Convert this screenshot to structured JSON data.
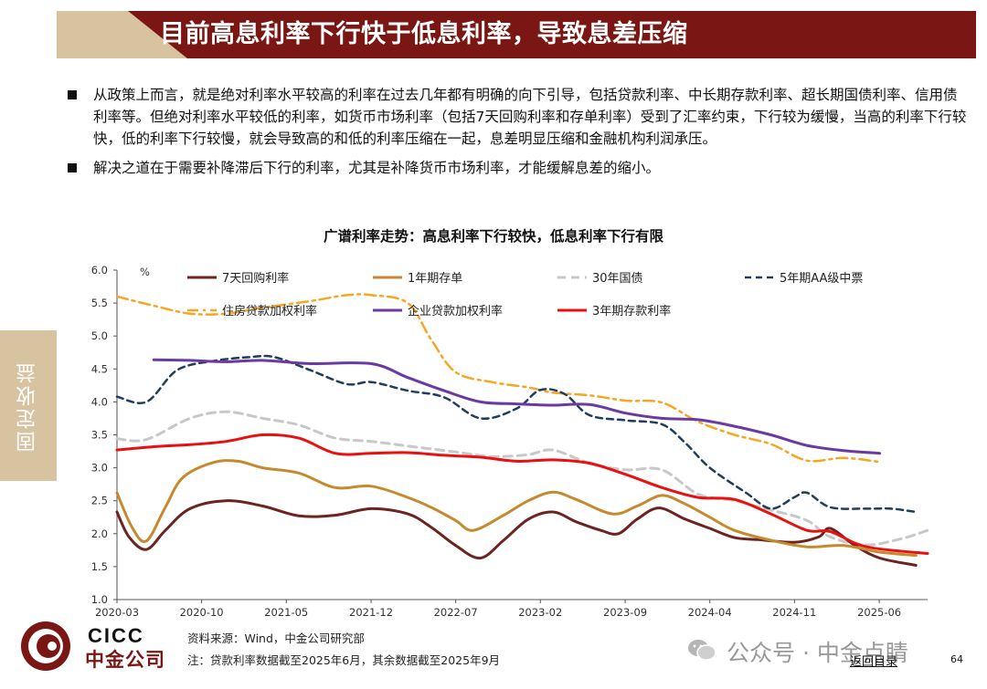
{
  "header": {
    "title": "目前高息利率下行快于低息利率，导致息差压缩"
  },
  "bullets": [
    "从政策上而言，就是绝对利率水平较高的利率在过去几年都有明确的向下引导，包括贷款利率、中长期存款利率、超长期国债利率、信用债利率等。但绝对利率水平较低的利率，如货币市场利率（包括7天回购利率和存单利率）受到了汇率约束，下行较为缓慢，当高的利率下行较快，低的利率下行较慢，就会导致高的和低的利率压缩在一起，息差明显压缩和金融机构利润承压。",
    "解决之道在于需要补降滞后下行的利率，尤其是补降货币市场利率，才能缓解息差的缩小。"
  ],
  "side_tab": "固定收益",
  "chart_data": {
    "type": "line",
    "title": "广谱利率走势：高息利率下行较快，低息利率下行有限",
    "ylabel": "%",
    "ylim": [
      1.0,
      6.0
    ],
    "yticks": [
      "1.0",
      "1.5",
      "2.0",
      "2.5",
      "3.0",
      "3.5",
      "4.0",
      "4.5",
      "5.0",
      "5.5",
      "6.0"
    ],
    "xlim": [
      2020.167,
      2025.75
    ],
    "xticks": [
      {
        "label": "2020-03",
        "t": 2020.167
      },
      {
        "label": "2020-10",
        "t": 2020.75
      },
      {
        "label": "2021-05",
        "t": 2021.333
      },
      {
        "label": "2021-12",
        "t": 2021.917
      },
      {
        "label": "2022-07",
        "t": 2022.5
      },
      {
        "label": "2023-02",
        "t": 2023.083
      },
      {
        "label": "2023-09",
        "t": 2023.667
      },
      {
        "label": "2024-04",
        "t": 2024.25
      },
      {
        "label": "2024-11",
        "t": 2024.833
      },
      {
        "label": "2025-06",
        "t": 2025.417
      }
    ],
    "legend_position": "top",
    "grid": false,
    "series": [
      {
        "name": "7天回购利率",
        "color": "#6b2420",
        "dash": "",
        "width": 3,
        "points": [
          [
            2020.167,
            2.33
          ],
          [
            2020.25,
            1.95
          ],
          [
            2020.37,
            1.76
          ],
          [
            2020.5,
            2.05
          ],
          [
            2020.67,
            2.38
          ],
          [
            2020.92,
            2.5
          ],
          [
            2021.17,
            2.42
          ],
          [
            2021.42,
            2.27
          ],
          [
            2021.67,
            2.28
          ],
          [
            2021.92,
            2.38
          ],
          [
            2022.17,
            2.3
          ],
          [
            2022.33,
            2.1
          ],
          [
            2022.5,
            1.82
          ],
          [
            2022.67,
            1.63
          ],
          [
            2022.83,
            1.9
          ],
          [
            2023.0,
            2.22
          ],
          [
            2023.17,
            2.33
          ],
          [
            2023.33,
            2.18
          ],
          [
            2023.5,
            2.05
          ],
          [
            2023.62,
            2.0
          ],
          [
            2023.75,
            2.22
          ],
          [
            2023.9,
            2.39
          ],
          [
            2024.08,
            2.22
          ],
          [
            2024.25,
            2.08
          ],
          [
            2024.42,
            1.94
          ],
          [
            2024.58,
            1.91
          ],
          [
            2024.83,
            1.87
          ],
          [
            2025.0,
            1.95
          ],
          [
            2025.08,
            2.08
          ],
          [
            2025.25,
            1.82
          ],
          [
            2025.42,
            1.63
          ],
          [
            2025.67,
            1.52
          ]
        ]
      },
      {
        "name": "1年期存单",
        "color": "#c58a2e",
        "dash": "",
        "width": 3,
        "points": [
          [
            2020.167,
            2.62
          ],
          [
            2020.27,
            2.1
          ],
          [
            2020.37,
            1.89
          ],
          [
            2020.5,
            2.4
          ],
          [
            2020.62,
            2.85
          ],
          [
            2020.83,
            3.08
          ],
          [
            2021.0,
            3.1
          ],
          [
            2021.17,
            3.0
          ],
          [
            2021.42,
            2.92
          ],
          [
            2021.67,
            2.7
          ],
          [
            2021.92,
            2.72
          ],
          [
            2022.17,
            2.55
          ],
          [
            2022.33,
            2.4
          ],
          [
            2022.5,
            2.2
          ],
          [
            2022.62,
            2.05
          ],
          [
            2022.83,
            2.28
          ],
          [
            2023.0,
            2.5
          ],
          [
            2023.17,
            2.63
          ],
          [
            2023.33,
            2.52
          ],
          [
            2023.58,
            2.3
          ],
          [
            2023.75,
            2.42
          ],
          [
            2023.92,
            2.58
          ],
          [
            2024.08,
            2.45
          ],
          [
            2024.25,
            2.25
          ],
          [
            2024.42,
            2.05
          ],
          [
            2024.67,
            1.9
          ],
          [
            2024.92,
            1.8
          ],
          [
            2025.17,
            1.82
          ],
          [
            2025.42,
            1.72
          ],
          [
            2025.67,
            1.67
          ]
        ]
      },
      {
        "name": "30年国债",
        "color": "#c8c8c8",
        "dash": "9,6",
        "width": 3,
        "points": [
          [
            2020.167,
            3.44
          ],
          [
            2020.37,
            3.43
          ],
          [
            2020.67,
            3.75
          ],
          [
            2020.92,
            3.85
          ],
          [
            2021.17,
            3.75
          ],
          [
            2021.42,
            3.65
          ],
          [
            2021.67,
            3.45
          ],
          [
            2021.92,
            3.4
          ],
          [
            2022.17,
            3.33
          ],
          [
            2022.5,
            3.24
          ],
          [
            2022.75,
            3.17
          ],
          [
            2023.0,
            3.2
          ],
          [
            2023.17,
            3.27
          ],
          [
            2023.42,
            3.07
          ],
          [
            2023.67,
            2.97
          ],
          [
            2023.92,
            2.97
          ],
          [
            2024.17,
            2.6
          ],
          [
            2024.42,
            2.5
          ],
          [
            2024.67,
            2.36
          ],
          [
            2024.92,
            2.2
          ],
          [
            2025.08,
            1.95
          ],
          [
            2025.33,
            1.83
          ],
          [
            2025.58,
            1.93
          ],
          [
            2025.75,
            2.05
          ]
        ]
      },
      {
        "name": "5年期AA级中票",
        "color": "#1f3d5c",
        "dash": "7,5",
        "width": 2.5,
        "points": [
          [
            2020.167,
            4.08
          ],
          [
            2020.37,
            4.0
          ],
          [
            2020.58,
            4.48
          ],
          [
            2020.83,
            4.62
          ],
          [
            2021.08,
            4.68
          ],
          [
            2021.25,
            4.68
          ],
          [
            2021.5,
            4.48
          ],
          [
            2021.75,
            4.27
          ],
          [
            2021.92,
            4.3
          ],
          [
            2022.17,
            4.17
          ],
          [
            2022.42,
            4.07
          ],
          [
            2022.67,
            3.75
          ],
          [
            2022.92,
            3.9
          ],
          [
            2023.08,
            4.18
          ],
          [
            2023.25,
            4.12
          ],
          [
            2023.42,
            3.8
          ],
          [
            2023.67,
            3.72
          ],
          [
            2023.92,
            3.66
          ],
          [
            2024.08,
            3.38
          ],
          [
            2024.25,
            3.0
          ],
          [
            2024.5,
            2.62
          ],
          [
            2024.67,
            2.38
          ],
          [
            2024.83,
            2.55
          ],
          [
            2024.92,
            2.62
          ],
          [
            2025.08,
            2.4
          ],
          [
            2025.33,
            2.38
          ],
          [
            2025.5,
            2.38
          ],
          [
            2025.67,
            2.33
          ]
        ]
      },
      {
        "name": "住房贷款加权利率",
        "color": "#f5a623",
        "dash": "12,5,3,5",
        "width": 2.5,
        "points": [
          [
            2020.167,
            5.6
          ],
          [
            2020.42,
            5.46
          ],
          [
            2020.67,
            5.34
          ],
          [
            2020.92,
            5.34
          ],
          [
            2021.17,
            5.43
          ],
          [
            2021.5,
            5.53
          ],
          [
            2021.75,
            5.62
          ],
          [
            2021.92,
            5.62
          ],
          [
            2022.17,
            5.5
          ],
          [
            2022.33,
            4.95
          ],
          [
            2022.5,
            4.45
          ],
          [
            2022.75,
            4.3
          ],
          [
            2023.0,
            4.22
          ],
          [
            2023.17,
            4.14
          ],
          [
            2023.42,
            4.1
          ],
          [
            2023.67,
            4.02
          ],
          [
            2023.92,
            3.99
          ],
          [
            2024.17,
            3.7
          ],
          [
            2024.42,
            3.5
          ],
          [
            2024.67,
            3.36
          ],
          [
            2024.92,
            3.11
          ],
          [
            2025.17,
            3.15
          ],
          [
            2025.42,
            3.09
          ]
        ]
      },
      {
        "name": "企业贷款加权利率",
        "color": "#6a3aa2",
        "dash": "",
        "width": 3,
        "points": [
          [
            2020.42,
            4.64
          ],
          [
            2020.67,
            4.63
          ],
          [
            2020.92,
            4.61
          ],
          [
            2021.17,
            4.63
          ],
          [
            2021.5,
            4.58
          ],
          [
            2021.92,
            4.58
          ],
          [
            2022.17,
            4.37
          ],
          [
            2022.42,
            4.17
          ],
          [
            2022.67,
            4.0
          ],
          [
            2022.92,
            3.97
          ],
          [
            2023.17,
            3.95
          ],
          [
            2023.42,
            3.96
          ],
          [
            2023.67,
            3.83
          ],
          [
            2023.92,
            3.75
          ],
          [
            2024.17,
            3.73
          ],
          [
            2024.42,
            3.63
          ],
          [
            2024.67,
            3.5
          ],
          [
            2024.92,
            3.34
          ],
          [
            2025.17,
            3.26
          ],
          [
            2025.42,
            3.22
          ]
        ]
      },
      {
        "name": "3年期存款利率",
        "color": "#e81010",
        "dash": "",
        "width": 3,
        "points": [
          [
            2020.167,
            3.27
          ],
          [
            2020.42,
            3.32
          ],
          [
            2020.67,
            3.35
          ],
          [
            2020.92,
            3.4
          ],
          [
            2021.17,
            3.5
          ],
          [
            2021.42,
            3.45
          ],
          [
            2021.67,
            3.22
          ],
          [
            2021.92,
            3.22
          ],
          [
            2022.17,
            3.23
          ],
          [
            2022.42,
            3.19
          ],
          [
            2022.67,
            3.16
          ],
          [
            2022.92,
            3.1
          ],
          [
            2023.17,
            3.12
          ],
          [
            2023.42,
            3.07
          ],
          [
            2023.67,
            2.9
          ],
          [
            2023.92,
            2.7
          ],
          [
            2024.17,
            2.55
          ],
          [
            2024.42,
            2.52
          ],
          [
            2024.67,
            2.3
          ],
          [
            2024.92,
            2.05
          ],
          [
            2025.08,
            2.03
          ],
          [
            2025.33,
            1.8
          ],
          [
            2025.75,
            1.7
          ]
        ]
      }
    ]
  },
  "footer": {
    "logo_en": "CICC",
    "logo_cn": "中金公司",
    "source": "资料来源：Wind，中金公司研究部",
    "note": "注：贷款利率数据截至2025年6月，其余数据截至2025年9月",
    "watermark": "公众号 · 中金点睛",
    "back_link": "返回目录",
    "page_number": "64"
  }
}
